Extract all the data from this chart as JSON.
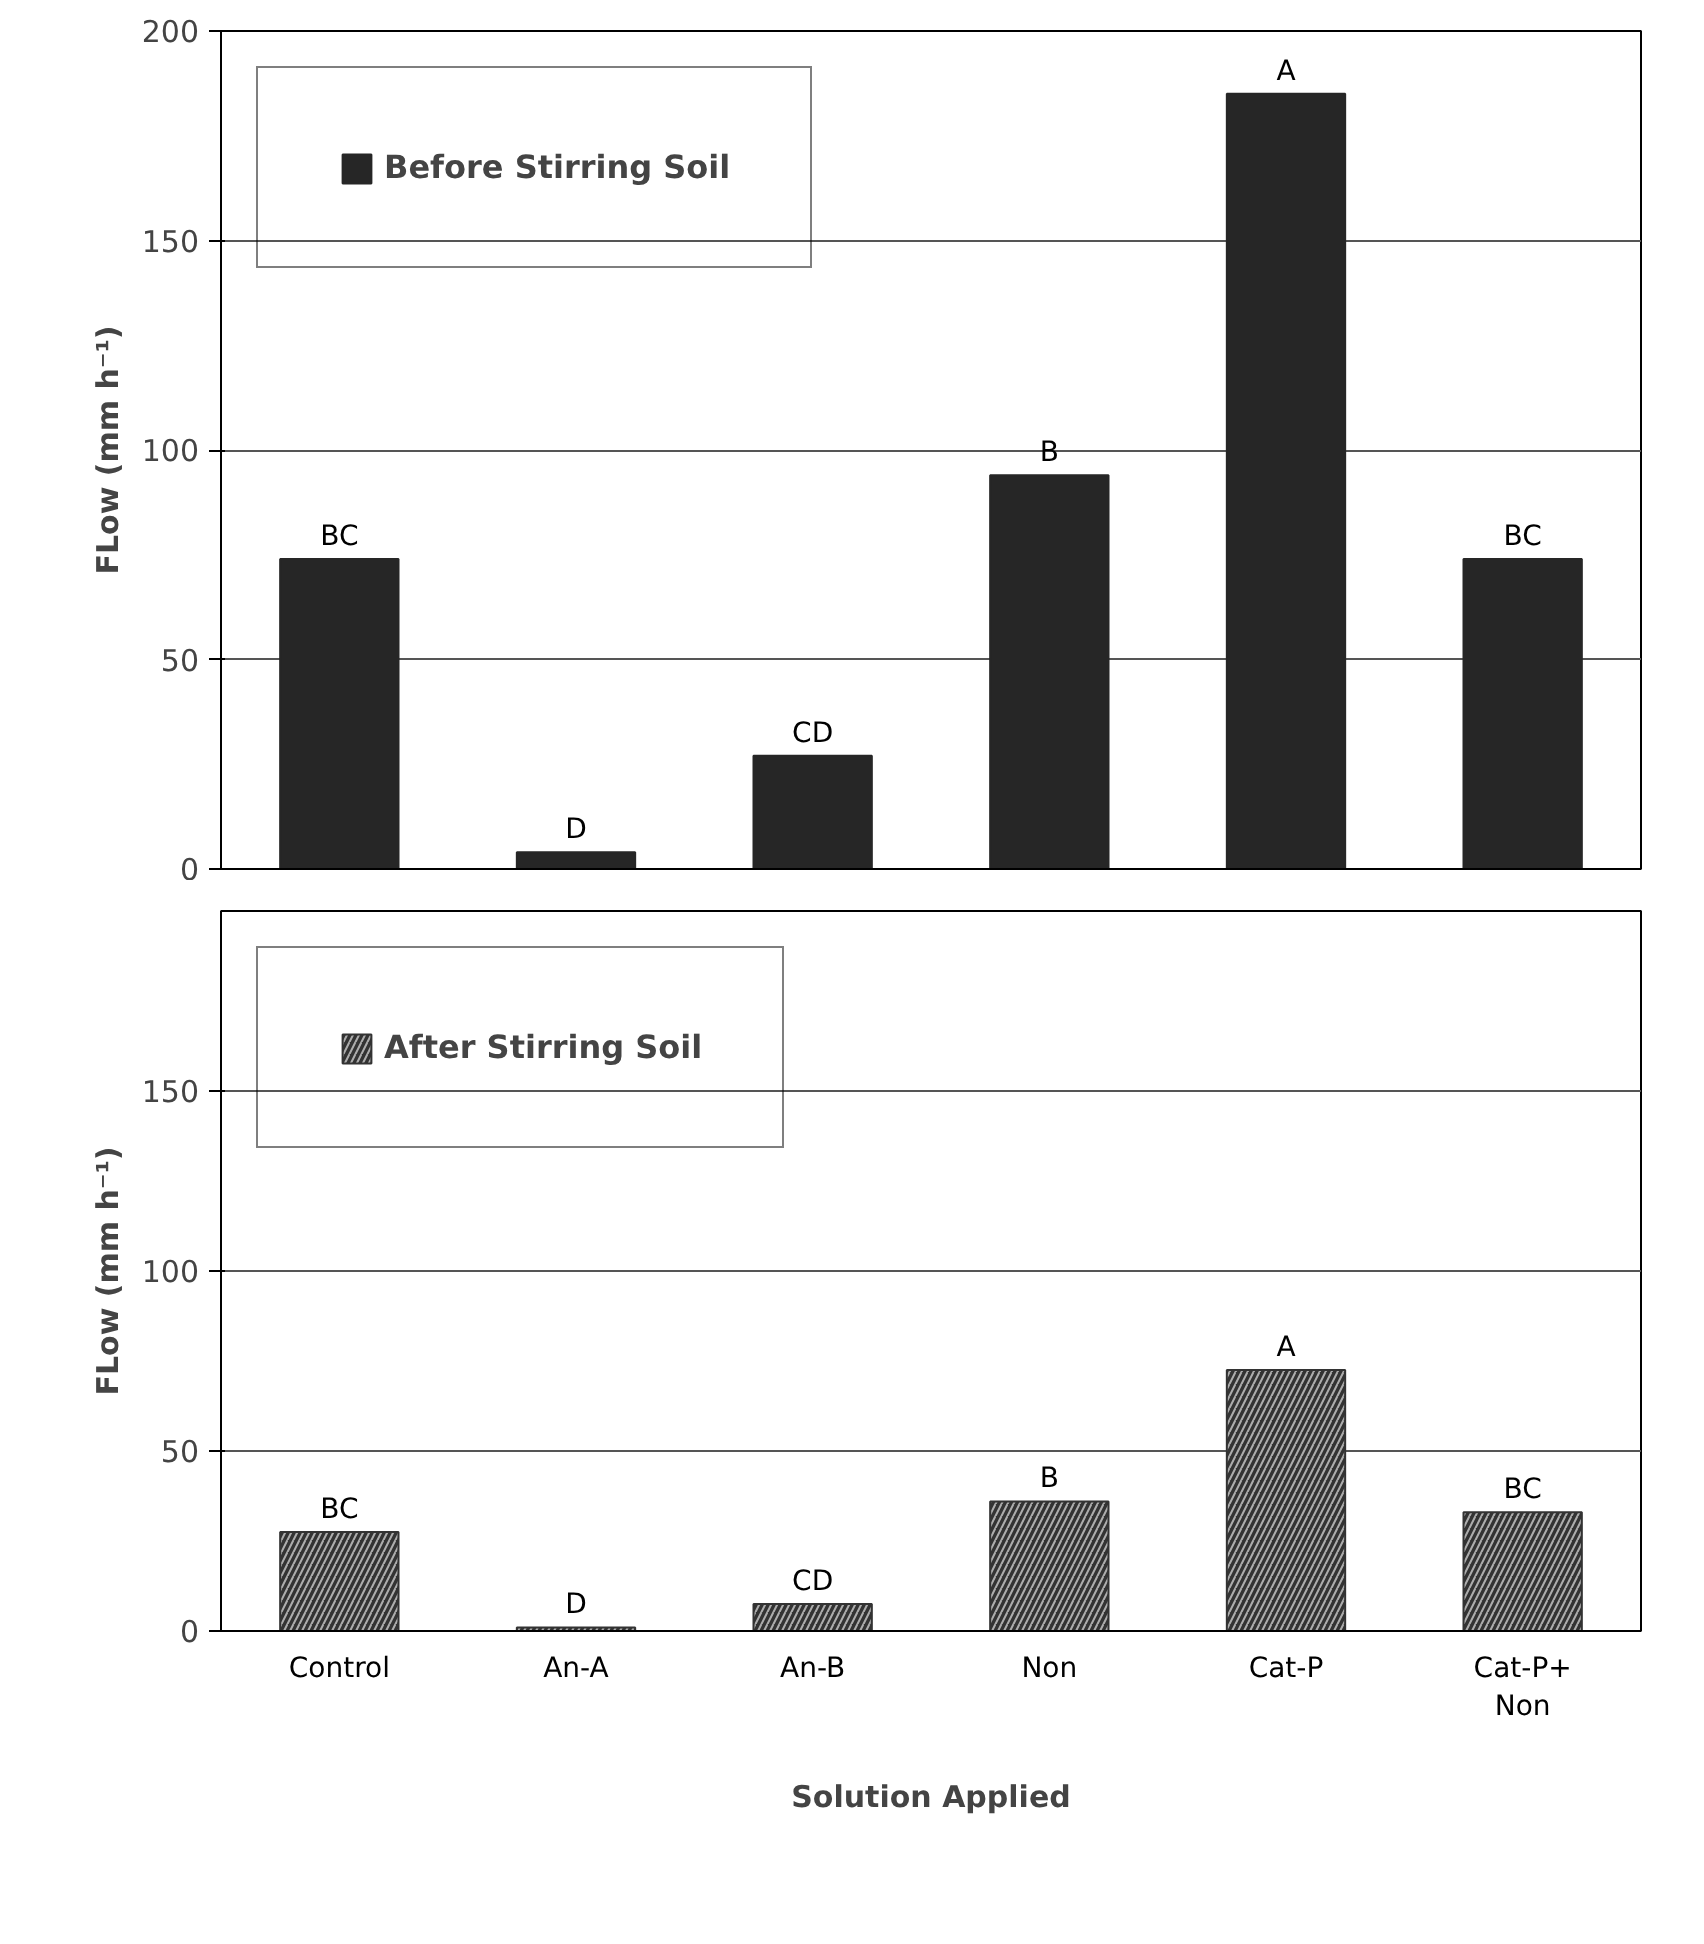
{
  "chart_data": [
    {
      "type": "bar",
      "categories": [
        "Control",
        "An-A",
        "An-B",
        "Non",
        "Cat-P",
        "Cat-P+\nNon"
      ],
      "ylabel": "FLow (mm h⁻¹)",
      "ylim": [
        0,
        200
      ],
      "yticks": [
        0,
        50,
        100,
        150,
        200
      ],
      "grid": "y",
      "legend": "top left",
      "tick_labels": "y",
      "series": [
        {
          "name": "Before Stirring Soil",
          "color": "#262626",
          "values": [
            74,
            4,
            27,
            94,
            185,
            74
          ]
        }
      ],
      "annotations": [
        {
          "text": "BC",
          "x": "Control",
          "y": 74
        },
        {
          "text": "D",
          "x": "An-A",
          "y": 4
        },
        {
          "text": "CD",
          "x": "An-B",
          "y": 27
        },
        {
          "text": "B",
          "x": "Non",
          "y": 94
        },
        {
          "text": "A",
          "x": "Cat-P",
          "y": 185
        },
        {
          "text": "BC",
          "x": "Cat-P+\nNon",
          "y": 74
        }
      ]
    },
    {
      "type": "bar",
      "categories": [
        "Control",
        "An-A",
        "An-B",
        "Non",
        "Cat-P",
        "Cat-P+\nNon"
      ],
      "xlabel": "Solution Applied",
      "ylabel": "FLow (mm h⁻¹)",
      "ylim": [
        0,
        200
      ],
      "yticks": [
        0,
        50,
        100,
        150
      ],
      "grid": "y",
      "legend": "top left",
      "series": [
        {
          "name": "After Stirring Soil",
          "color": "#333333",
          "values": [
            27.5,
            1,
            7.5,
            36,
            72.5,
            33
          ]
        }
      ],
      "annotations": [
        {
          "text": "BC",
          "x": "Control",
          "y": 27.5
        },
        {
          "text": "D",
          "x": "An-A",
          "y": 1
        },
        {
          "text": "CD",
          "x": "An-B",
          "y": 7.5
        },
        {
          "text": "B",
          "x": "Non",
          "y": 36
        },
        {
          "text": "A",
          "x": "Cat-P",
          "y": 72.5
        },
        {
          "text": "BC",
          "x": "Cat-P+\nNon",
          "y": 33
        }
      ]
    }
  ]
}
